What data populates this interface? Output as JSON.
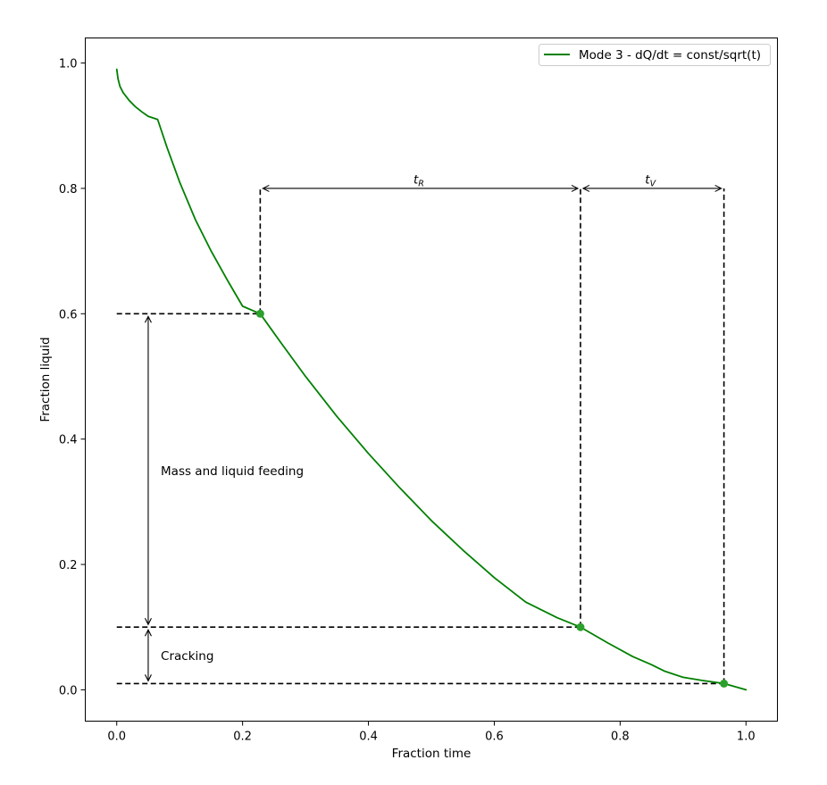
{
  "chart_data": {
    "type": "line",
    "xlabel": "Fraction time",
    "ylabel": "Fraction liquid",
    "xlim": [
      -0.05,
      1.05
    ],
    "ylim": [
      -0.05,
      1.04
    ],
    "xticks": [
      0.0,
      0.2,
      0.4,
      0.6,
      0.8,
      1.0
    ],
    "xtick_labels": [
      "0.0",
      "0.2",
      "0.4",
      "0.6",
      "0.8",
      "1.0"
    ],
    "yticks": [
      0.0,
      0.2,
      0.4,
      0.6,
      0.8,
      1.0
    ],
    "ytick_labels": [
      "0.0",
      "0.2",
      "0.4",
      "0.6",
      "0.8",
      "1.0"
    ],
    "grid": false,
    "legend": {
      "placement": "top-right"
    },
    "series": [
      {
        "name": "Mode 3 - dQ/dt = const/sqrt(t)",
        "color": "#008000",
        "x": [
          0.0,
          0.002,
          0.005,
          0.01,
          0.02,
          0.03,
          0.04,
          0.05,
          0.065,
          0.08,
          0.1,
          0.125,
          0.15,
          0.175,
          0.2,
          0.228,
          0.26,
          0.3,
          0.35,
          0.4,
          0.45,
          0.5,
          0.55,
          0.6,
          0.65,
          0.7,
          0.737,
          0.78,
          0.82,
          0.85,
          0.87,
          0.9,
          0.93,
          0.965,
          1.0
        ],
        "y": [
          0.99,
          0.975,
          0.963,
          0.953,
          0.94,
          0.93,
          0.922,
          0.915,
          0.91,
          0.865,
          0.81,
          0.75,
          0.7,
          0.655,
          0.612,
          0.6,
          0.555,
          0.5,
          0.436,
          0.377,
          0.322,
          0.27,
          0.223,
          0.179,
          0.14,
          0.115,
          0.1,
          0.075,
          0.053,
          0.04,
          0.03,
          0.02,
          0.015,
          0.01,
          0.0
        ]
      }
    ],
    "markers": {
      "color": "#2ca02c",
      "points": [
        {
          "x": 0.228,
          "y": 0.6
        },
        {
          "x": 0.737,
          "y": 0.1
        },
        {
          "x": 0.965,
          "y": 0.01
        }
      ]
    },
    "reference_lines": [
      {
        "style": "dashed",
        "x": [
          0.0,
          0.228
        ],
        "y": [
          0.6,
          0.6
        ]
      },
      {
        "style": "dashed",
        "x": [
          0.0,
          0.737
        ],
        "y": [
          0.1,
          0.1
        ]
      },
      {
        "style": "dashed",
        "x": [
          0.0,
          0.965
        ],
        "y": [
          0.01,
          0.01
        ]
      },
      {
        "style": "dashed",
        "x": [
          0.228,
          0.228
        ],
        "y": [
          0.6,
          0.8
        ]
      },
      {
        "style": "dashed",
        "x": [
          0.737,
          0.737
        ],
        "y": [
          0.1,
          0.8
        ]
      },
      {
        "style": "dashed",
        "x": [
          0.965,
          0.965
        ],
        "y": [
          0.01,
          0.8
        ]
      }
    ],
    "arrows": [
      {
        "x": [
          0.228,
          0.737
        ],
        "y": [
          0.8,
          0.8
        ]
      },
      {
        "x": [
          0.737,
          0.965
        ],
        "y": [
          0.8,
          0.8
        ]
      },
      {
        "x": [
          0.05,
          0.05
        ],
        "y": [
          0.6,
          0.1
        ]
      },
      {
        "x": [
          0.05,
          0.05
        ],
        "y": [
          0.1,
          0.01
        ]
      }
    ],
    "annotations": [
      {
        "main": "t",
        "sub": "R",
        "x": 0.48,
        "y": 0.815,
        "align": "middle",
        "italic": true
      },
      {
        "main": "t",
        "sub": "V",
        "x": 0.848,
        "y": 0.815,
        "align": "middle",
        "italic": true
      },
      {
        "main": "Mass and liquid feeding",
        "x": 0.07,
        "y": 0.35,
        "align": "start"
      },
      {
        "main": "Cracking",
        "x": 0.07,
        "y": 0.055,
        "align": "start"
      }
    ]
  }
}
